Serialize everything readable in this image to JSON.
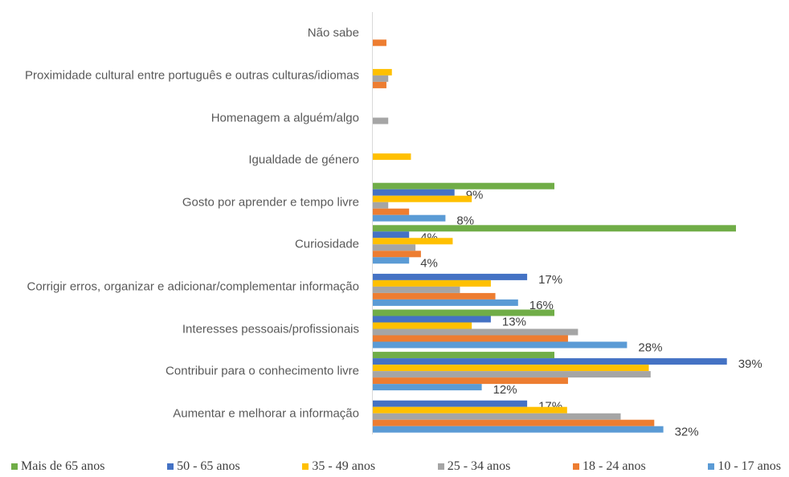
{
  "chart_data": {
    "type": "bar",
    "orientation": "horizontal",
    "categories": [
      "Não sabe",
      "Proximidade cultural entre português e outras culturas/idiomas",
      "Homenagem a alguém/algo",
      "Igualdade de género",
      "Gosto por aprender e tempo livre",
      "Curiosidade",
      "Corrigir erros, organizar e adicionar/complementar informação",
      "Interesses pessoais/profissionais",
      "Contribuir para o conhecimento livre",
      "Aumentar e melhorar a informação"
    ],
    "series": [
      {
        "name": "Mais de 65 anos",
        "color": "#70ad47",
        "values": [
          0,
          0,
          0,
          0,
          20,
          40,
          0,
          20,
          20,
          0
        ]
      },
      {
        "name": "50 - 65 anos",
        "color": "#4472c4",
        "values": [
          0,
          0,
          0,
          0,
          9,
          4,
          17,
          13,
          39,
          17
        ],
        "value_labels": [
          null,
          null,
          null,
          null,
          "9%",
          "4%",
          "17%",
          "13%",
          "39%",
          "17%"
        ]
      },
      {
        "name": "35 - 49 anos",
        "color": "#ffc000",
        "values": [
          0,
          2.1,
          0,
          4.2,
          10.9,
          8.8,
          13,
          10.9,
          30.4,
          21.4
        ]
      },
      {
        "name": "25 - 34 anos",
        "color": "#a5a5a5",
        "values": [
          0,
          1.7,
          1.7,
          0,
          1.7,
          4.7,
          9.6,
          22.6,
          30.6,
          27.3
        ]
      },
      {
        "name": "18 - 24 anos",
        "color": "#ed7d31",
        "values": [
          1.5,
          1.5,
          0,
          0,
          4,
          5.3,
          13.5,
          21.5,
          21.5,
          31
        ]
      },
      {
        "name": "10 - 17 anos",
        "color": "#5b9bd5",
        "values": [
          0,
          0,
          0,
          0,
          8,
          4,
          16,
          28,
          12,
          32
        ],
        "value_labels": [
          null,
          null,
          null,
          null,
          "8%",
          "4%",
          "16%",
          "28%",
          "12%",
          "32%"
        ]
      }
    ]
  }
}
